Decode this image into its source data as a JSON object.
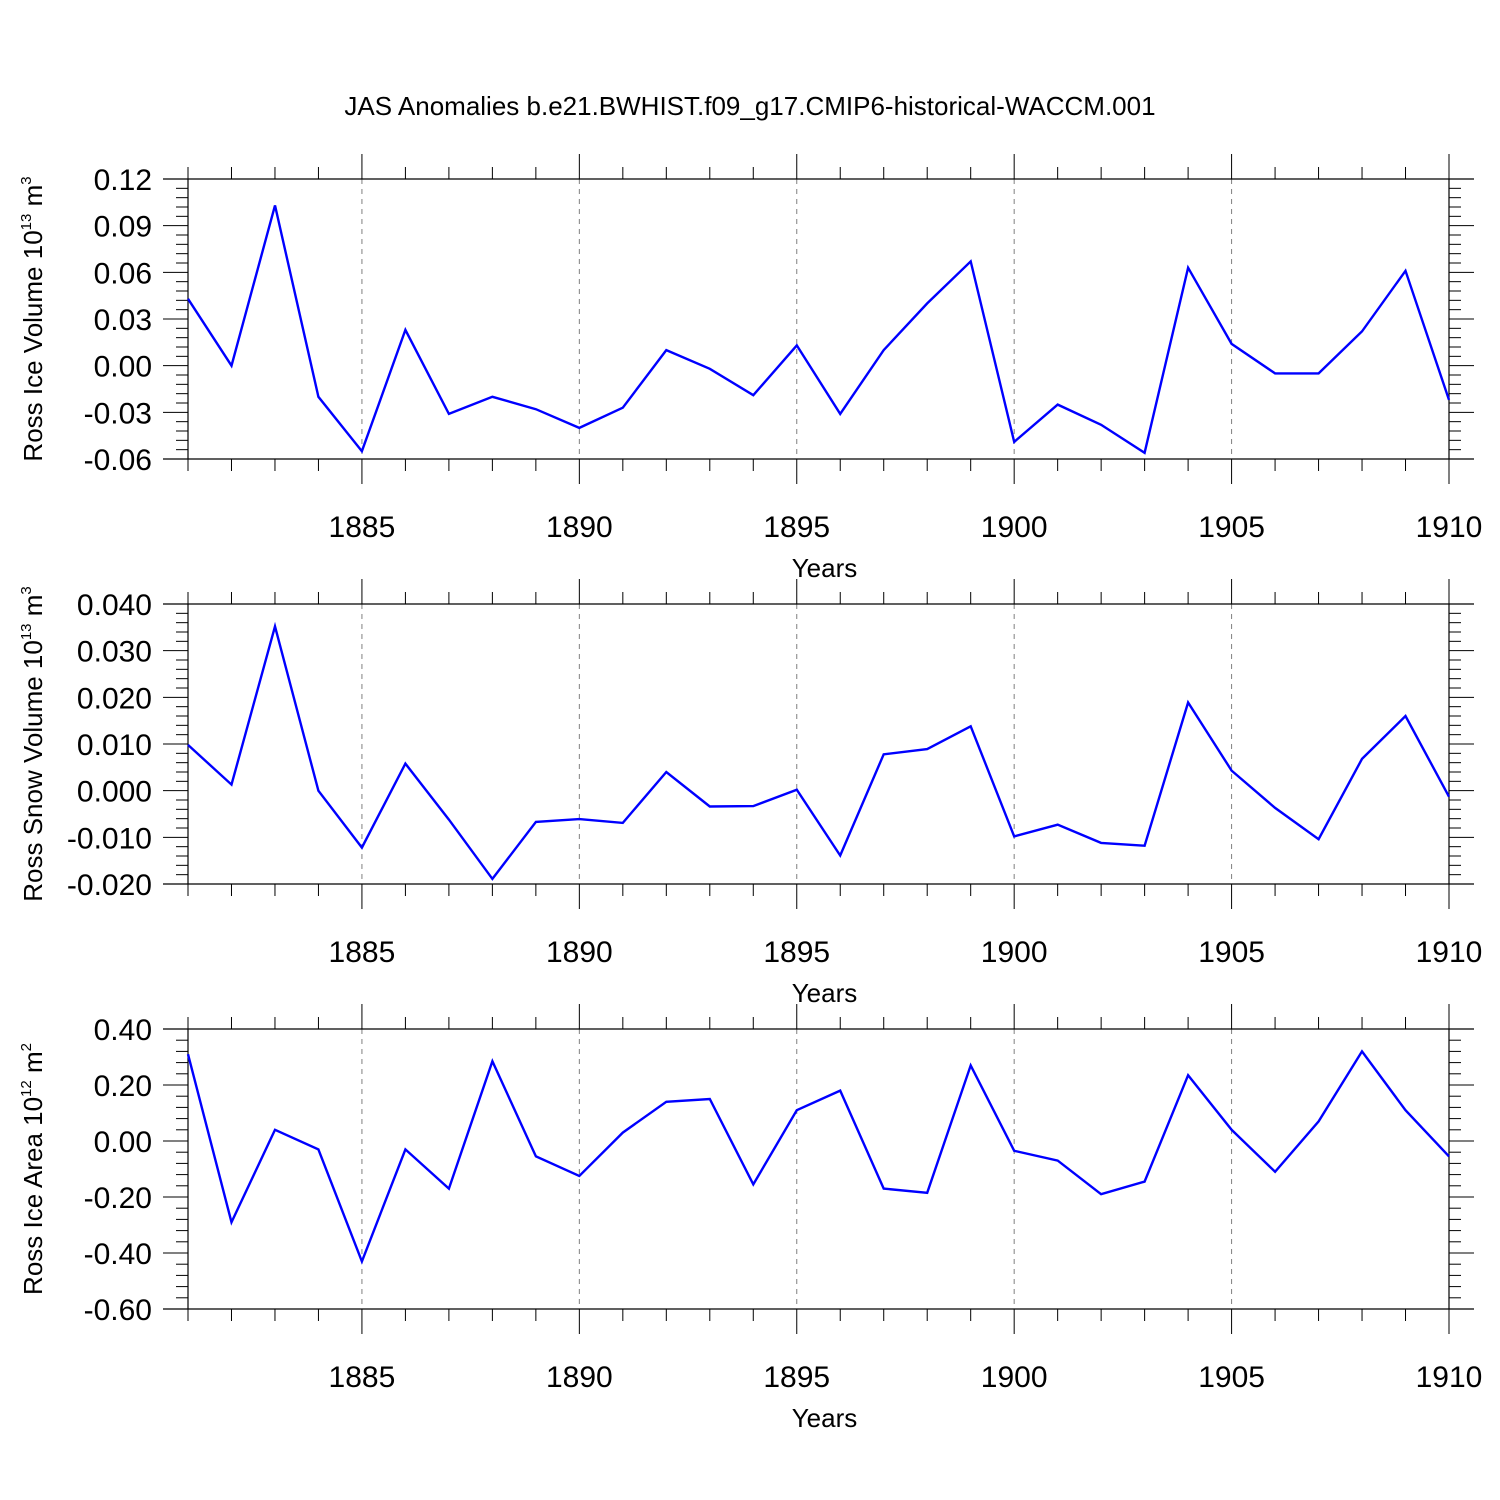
{
  "title": "JAS Anomalies b.e21.BWHIST.f09_g17.CMIP6-historical-WACCM.001",
  "colors": {
    "line": "#0000ff",
    "axis": "#000000",
    "grid": "#808080"
  },
  "chart_data": [
    {
      "type": "line",
      "ylabel": {
        "text": "Ross Ice Volume 10",
        "sup": "13",
        "unit": " m",
        "unit_sup": "3"
      },
      "xlabel": "Years",
      "xlim": [
        1881,
        1910
      ],
      "ylim": [
        -0.06,
        0.12
      ],
      "y_ticks": [
        -0.06,
        -0.03,
        0.0,
        0.03,
        0.06,
        0.09,
        0.12
      ],
      "y_tick_labels": [
        "-0.06",
        "-0.03",
        "0.00",
        "0.03",
        "0.06",
        "0.09",
        "0.12"
      ],
      "x_ticks": [
        1885,
        1890,
        1895,
        1900,
        1905,
        1910
      ],
      "x_tick_labels": [
        "1885",
        "1890",
        "1895",
        "1900",
        "1905",
        "1910"
      ],
      "grid": "dashed vertical at labeled years",
      "series": [
        {
          "x": [
            1881,
            1882,
            1883,
            1884,
            1885,
            1886,
            1887,
            1888,
            1889,
            1890,
            1891,
            1892,
            1893,
            1894,
            1895,
            1896,
            1897,
            1898,
            1899,
            1900,
            1901,
            1902,
            1903,
            1904,
            1905,
            1906,
            1907,
            1908,
            1909,
            1910
          ],
          "values": [
            0.043,
            0.0,
            0.103,
            -0.02,
            -0.055,
            0.023,
            -0.031,
            -0.02,
            -0.028,
            -0.04,
            -0.027,
            0.01,
            -0.002,
            -0.019,
            0.013,
            -0.031,
            0.01,
            0.04,
            0.067,
            -0.049,
            -0.025,
            -0.038,
            -0.056,
            0.063,
            0.014,
            -0.005,
            -0.005,
            0.022,
            0.061,
            -0.022
          ]
        }
      ]
    },
    {
      "type": "line",
      "ylabel": {
        "text": "Ross Snow Volume 10",
        "sup": "13",
        "unit": " m",
        "unit_sup": "3"
      },
      "xlabel": "Years",
      "xlim": [
        1881,
        1910
      ],
      "ylim": [
        -0.02,
        0.04
      ],
      "y_ticks": [
        -0.02,
        -0.01,
        0.0,
        0.01,
        0.02,
        0.03,
        0.04
      ],
      "y_tick_labels": [
        "-0.020",
        "-0.010",
        "0.000",
        "0.010",
        "0.020",
        "0.030",
        "0.040"
      ],
      "x_ticks": [
        1885,
        1890,
        1895,
        1900,
        1905,
        1910
      ],
      "x_tick_labels": [
        "1885",
        "1890",
        "1895",
        "1900",
        "1905",
        "1910"
      ],
      "grid": "dashed vertical at labeled years",
      "series": [
        {
          "x": [
            1881,
            1882,
            1883,
            1884,
            1885,
            1886,
            1887,
            1888,
            1889,
            1890,
            1891,
            1892,
            1893,
            1894,
            1895,
            1896,
            1897,
            1898,
            1899,
            1900,
            1901,
            1902,
            1903,
            1904,
            1905,
            1906,
            1907,
            1908,
            1909,
            1910
          ],
          "values": [
            0.0098,
            0.0013,
            0.0352,
            0.0,
            -0.0122,
            0.0058,
            -0.0062,
            -0.0189,
            -0.0067,
            -0.0061,
            -0.0069,
            0.004,
            -0.0034,
            -0.0033,
            0.0002,
            -0.0139,
            0.0078,
            0.0089,
            0.0138,
            -0.0098,
            -0.0073,
            -0.0112,
            -0.0118,
            0.0189,
            0.0043,
            -0.0037,
            -0.0104,
            0.0068,
            0.016,
            -0.0013
          ]
        }
      ]
    },
    {
      "type": "line",
      "ylabel": {
        "text": "Ross Ice Area 10",
        "sup": "12",
        "unit": " m",
        "unit_sup": "2"
      },
      "xlabel": "Years",
      "xlim": [
        1881,
        1910
      ],
      "ylim": [
        -0.6,
        0.4
      ],
      "y_ticks": [
        -0.6,
        -0.4,
        -0.2,
        0.0,
        0.2,
        0.4
      ],
      "y_tick_labels": [
        "-0.60",
        "-0.40",
        "-0.20",
        "0.00",
        "0.20",
        "0.40"
      ],
      "x_ticks": [
        1885,
        1890,
        1895,
        1900,
        1905,
        1910
      ],
      "x_tick_labels": [
        "1885",
        "1890",
        "1895",
        "1900",
        "1905",
        "1910"
      ],
      "grid": "dashed vertical at labeled years",
      "series": [
        {
          "x": [
            1881,
            1882,
            1883,
            1884,
            1885,
            1886,
            1887,
            1888,
            1889,
            1890,
            1891,
            1892,
            1893,
            1894,
            1895,
            1896,
            1897,
            1898,
            1899,
            1900,
            1901,
            1902,
            1903,
            1904,
            1905,
            1906,
            1907,
            1908,
            1909,
            1910
          ],
          "values": [
            0.31,
            -0.29,
            0.04,
            -0.03,
            -0.43,
            -0.03,
            -0.17,
            0.285,
            -0.055,
            -0.125,
            0.03,
            0.14,
            0.15,
            -0.155,
            0.11,
            0.18,
            -0.17,
            -0.185,
            0.27,
            -0.035,
            -0.07,
            -0.19,
            -0.145,
            0.235,
            0.04,
            -0.11,
            0.07,
            0.32,
            0.11,
            -0.055
          ]
        }
      ]
    }
  ]
}
